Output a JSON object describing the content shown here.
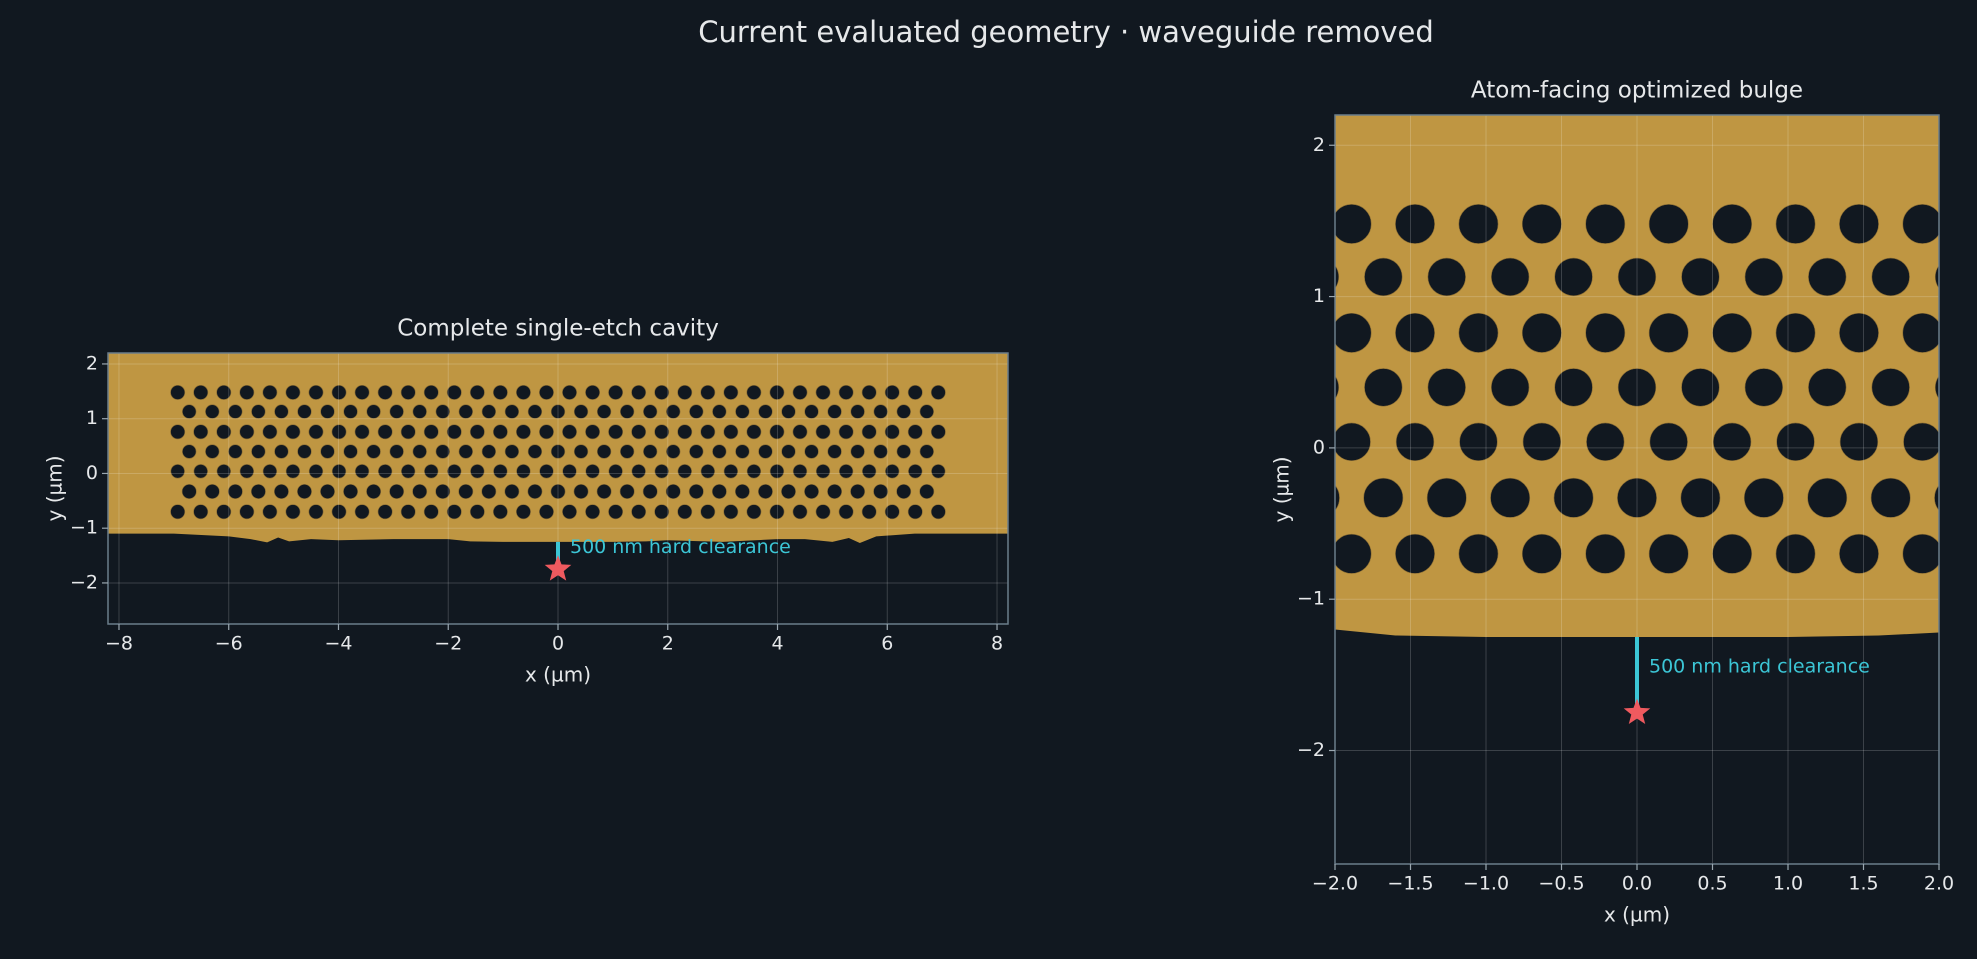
{
  "title": "Current evaluated geometry · waveguide removed",
  "geometry": {
    "holes": [
      {
        "y": 1.48,
        "r": 0.13,
        "x": [
          -6.93,
          -6.51,
          -6.09,
          -5.67,
          -5.25,
          -4.83,
          -4.41,
          -3.99,
          -3.57,
          -3.15,
          -2.73,
          -2.31,
          -1.89,
          -1.47,
          -1.05,
          -0.63,
          -0.21,
          0.21,
          0.63,
          1.05,
          1.47,
          1.89,
          2.31,
          2.73,
          3.15,
          3.57,
          3.99,
          4.41,
          4.83,
          5.25,
          5.67,
          6.09,
          6.51,
          6.93
        ]
      },
      {
        "y": 1.13,
        "r": 0.125,
        "x": [
          -6.72,
          -6.3,
          -5.88,
          -5.46,
          -5.04,
          -4.62,
          -4.2,
          -3.78,
          -3.36,
          -2.94,
          -2.52,
          -2.1,
          -1.68,
          -1.26,
          -0.84,
          -0.42,
          0,
          0.42,
          0.84,
          1.26,
          1.68,
          2.1,
          2.52,
          2.94,
          3.36,
          3.78,
          4.2,
          4.62,
          5.04,
          5.46,
          5.88,
          6.3,
          6.72
        ]
      },
      {
        "y": 0.76,
        "r": 0.13,
        "x": [
          -6.93,
          -6.51,
          -6.09,
          -5.67,
          -5.25,
          -4.83,
          -4.41,
          -3.99,
          -3.57,
          -3.15,
          -2.73,
          -2.31,
          -1.89,
          -1.47,
          -1.05,
          -0.63,
          -0.21,
          0.21,
          0.63,
          1.05,
          1.47,
          1.89,
          2.31,
          2.73,
          3.15,
          3.57,
          3.99,
          4.41,
          4.83,
          5.25,
          5.67,
          6.09,
          6.51,
          6.93
        ]
      },
      {
        "y": 0.4,
        "r": 0.125,
        "x": [
          -6.72,
          -6.3,
          -5.88,
          -5.46,
          -5.04,
          -4.62,
          -4.2,
          -3.78,
          -3.36,
          -2.94,
          -2.52,
          -2.1,
          -1.68,
          -1.26,
          -0.84,
          -0.42,
          0,
          0.42,
          0.84,
          1.26,
          1.68,
          2.1,
          2.52,
          2.94,
          3.36,
          3.78,
          4.2,
          4.62,
          5.04,
          5.46,
          5.88,
          6.3,
          6.72
        ]
      },
      {
        "y": 0.04,
        "r": 0.125,
        "x": [
          -6.93,
          -6.51,
          -6.09,
          -5.67,
          -5.25,
          -4.83,
          -4.41,
          -3.99,
          -3.57,
          -3.15,
          -2.73,
          -2.31,
          -1.89,
          -1.47,
          -1.05,
          -0.63,
          -0.21,
          0.21,
          0.63,
          1.05,
          1.47,
          1.89,
          2.31,
          2.73,
          3.15,
          3.57,
          3.99,
          4.41,
          4.83,
          5.25,
          5.67,
          6.09,
          6.51,
          6.93
        ]
      },
      {
        "y": -0.33,
        "r": 0.13,
        "x": [
          -6.72,
          -6.3,
          -5.88,
          -5.46,
          -5.04,
          -4.62,
          -4.2,
          -3.78,
          -3.36,
          -2.94,
          -2.52,
          -2.1,
          -1.68,
          -1.26,
          -0.84,
          -0.42,
          0,
          0.42,
          0.84,
          1.26,
          1.68,
          2.1,
          2.52,
          2.94,
          3.36,
          3.78,
          4.2,
          4.62,
          5.04,
          5.46,
          5.88,
          6.3,
          6.72
        ]
      },
      {
        "y": -0.7,
        "r": 0.13,
        "x": [
          -6.93,
          -6.51,
          -6.09,
          -5.67,
          -5.25,
          -4.83,
          -4.41,
          -3.99,
          -3.57,
          -3.15,
          -2.73,
          -2.31,
          -1.89,
          -1.47,
          -1.05,
          -0.63,
          -0.21,
          0.21,
          0.63,
          1.05,
          1.47,
          1.89,
          2.31,
          2.73,
          3.15,
          3.57,
          3.99,
          4.41,
          4.83,
          5.25,
          5.67,
          6.09,
          6.51,
          6.93
        ]
      }
    ],
    "edge": {
      "x": [
        -8.2,
        -7,
        -6,
        -5.6,
        -5.3,
        -5.1,
        -4.9,
        -4.5,
        -4,
        -3,
        -2,
        -1.6,
        -1,
        0,
        1,
        1.6,
        2,
        3,
        4,
        4.5,
        5,
        5.3,
        5.5,
        5.8,
        6.5,
        7,
        8.2
      ],
      "y": [
        -1.1,
        -1.1,
        -1.15,
        -1.2,
        -1.26,
        -1.17,
        -1.24,
        -1.2,
        -1.22,
        -1.2,
        -1.2,
        -1.24,
        -1.25,
        -1.25,
        -1.25,
        -1.24,
        -1.22,
        -1.25,
        -1.2,
        -1.2,
        -1.25,
        -1.18,
        -1.27,
        -1.15,
        -1.1,
        -1.1,
        -1.1
      ]
    }
  },
  "chart_data": [
    {
      "type": "geometry",
      "title": "Complete single-etch cavity",
      "x_label": "x (µm)",
      "y_label": "y (µm)",
      "xlim": [
        -8.2,
        8.2
      ],
      "ylim": [
        -2.75,
        2.2
      ],
      "xticks": [
        {
          "value": -8,
          "label": "−8"
        },
        {
          "value": -6,
          "label": "−6"
        },
        {
          "value": -4,
          "label": "−4"
        },
        {
          "value": -2,
          "label": "−2"
        },
        0,
        2,
        4,
        6,
        8
      ],
      "yticks": [
        {
          "value": -2,
          "label": "−2"
        },
        {
          "value": -1,
          "label": "−1"
        },
        0,
        1,
        2
      ],
      "grid": true,
      "slab_color": "#bf9642",
      "hole_color": "#111820",
      "clearance": {
        "text": "500 nm hard clearance",
        "x": 0,
        "y": [
          -1.25,
          -1.75
        ],
        "color": "#3cc6d6"
      },
      "atom": {
        "x": 0,
        "y": -1.75,
        "color": "#ef5a5f"
      }
    },
    {
      "type": "geometry",
      "title": "Atom-facing optimized bulge",
      "x_label": "x (µm)",
      "y_label": "y (µm)",
      "xlim": [
        -2,
        2
      ],
      "ylim": [
        -2.75,
        2.2
      ],
      "xticks": [
        {
          "value": -2,
          "label": "−2.0"
        },
        {
          "value": -1.5,
          "label": "−1.5"
        },
        {
          "value": -1,
          "label": "−1.0"
        },
        {
          "value": -0.5,
          "label": "−0.5"
        },
        {
          "value": 0,
          "label": "0.0"
        },
        0.5,
        {
          "value": 1,
          "label": "1.0"
        },
        1.5,
        {
          "value": 2,
          "label": "2.0"
        }
      ],
      "yticks": [
        {
          "value": -2,
          "label": "−2"
        },
        {
          "value": -1,
          "label": "−1"
        },
        0,
        1,
        2
      ],
      "grid": true,
      "slab_color": "#bf9642",
      "hole_color": "#111820",
      "clearance": {
        "text": "500 nm hard clearance",
        "x": 0,
        "y": [
          -1.25,
          -1.75
        ],
        "color": "#3cc6d6"
      },
      "atom": {
        "x": 0,
        "y": -1.75,
        "color": "#ef5a5f"
      }
    }
  ]
}
